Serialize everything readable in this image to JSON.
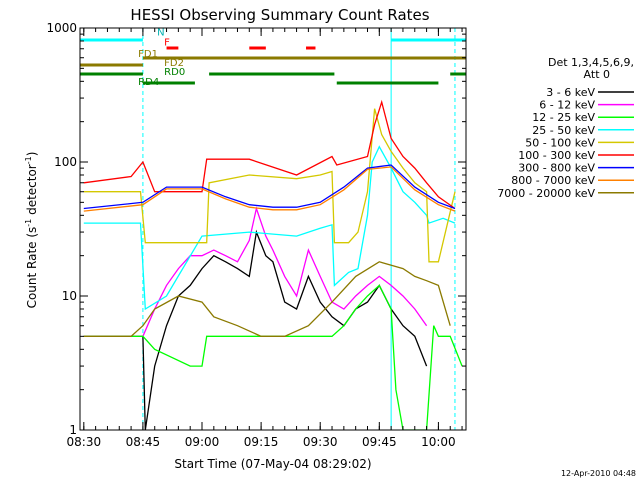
{
  "chart_data": {
    "type": "line",
    "title": "HESSI Observing Summary Count Rates",
    "xlabel": "Start Time (07-May-04 08:29:02)",
    "ylabel_main": "Count Rate (s",
    "ylabel_sup1": "-1",
    "ylabel_mid": " detector",
    "ylabel_sup2": "-1",
    "ylabel_end": ")",
    "yscale": "log",
    "xlim": [
      8.4839,
      10.1167
    ],
    "ylim": [
      1,
      1000
    ],
    "x_ticks": [
      {
        "v": 8.5,
        "label": "08:30"
      },
      {
        "v": 8.75,
        "label": "08:45"
      },
      {
        "v": 9.0,
        "label": "09:00"
      },
      {
        "v": 9.25,
        "label": "09:15"
      },
      {
        "v": 9.5,
        "label": "09:30"
      },
      {
        "v": 9.75,
        "label": "09:45"
      },
      {
        "v": 10.0,
        "label": "10:00"
      }
    ],
    "y_ticks": [
      {
        "v": 1,
        "label": "1"
      },
      {
        "v": 10,
        "label": "10"
      },
      {
        "v": 100,
        "label": "100"
      },
      {
        "v": 1000,
        "label": "1000"
      }
    ],
    "legend_header1": "Det 1,3,4,5,6,9,",
    "legend_header2": "Att 0",
    "legend_position": "right",
    "series": [
      {
        "name": "3 - 6 keV",
        "color": "#000000",
        "x": [
          8.5,
          8.75,
          8.76,
          8.8,
          8.85,
          8.9,
          8.95,
          9.0,
          9.05,
          9.1,
          9.15,
          9.2,
          9.23,
          9.27,
          9.3,
          9.35,
          9.4,
          9.45,
          9.5,
          9.55,
          9.6,
          9.65,
          9.7,
          9.75,
          9.8,
          9.85,
          9.9,
          9.95
        ],
        "y": [
          5,
          5,
          1,
          3,
          6,
          10,
          12,
          16,
          20,
          18,
          16,
          14,
          30,
          20,
          18,
          9,
          8,
          14,
          9,
          7,
          6,
          8,
          9,
          12,
          8,
          6,
          5,
          3
        ]
      },
      {
        "name": "6 - 12 keV",
        "color": "#ff00ff",
        "x": [
          8.5,
          8.75,
          8.8,
          8.85,
          8.9,
          8.95,
          9.0,
          9.05,
          9.1,
          9.15,
          9.2,
          9.23,
          9.27,
          9.3,
          9.35,
          9.4,
          9.45,
          9.5,
          9.55,
          9.6,
          9.65,
          9.7,
          9.75,
          9.8,
          9.85,
          9.9,
          9.95
        ],
        "y": [
          5,
          5,
          8,
          12,
          16,
          20,
          20,
          22,
          20,
          18,
          26,
          45,
          28,
          22,
          14,
          10,
          22,
          14,
          9,
          8,
          10,
          12,
          14,
          12,
          10,
          8,
          6
        ]
      },
      {
        "name": "12 - 25 keV",
        "color": "#00ff00",
        "x": [
          8.5,
          8.75,
          8.8,
          8.95,
          9.0,
          9.02,
          9.1,
          9.2,
          9.3,
          9.4,
          9.5,
          9.55,
          9.6,
          9.65,
          9.7,
          9.75,
          9.8,
          9.82,
          9.85,
          9.9,
          9.95,
          9.98,
          10.0,
          10.05,
          10.1
        ],
        "y": [
          5,
          5,
          4,
          3,
          3,
          5,
          5,
          5,
          5,
          5,
          5,
          5,
          6,
          8,
          10,
          12,
          8,
          2,
          1,
          1,
          1,
          6,
          5,
          5,
          3
        ]
      },
      {
        "name": "25 - 50 keV",
        "color": "#00ffff",
        "x": [
          8.5,
          8.74,
          8.76,
          8.85,
          9.0,
          9.2,
          9.4,
          9.5,
          9.55,
          9.56,
          9.62,
          9.66,
          9.7,
          9.72,
          9.75,
          9.8,
          9.85,
          9.9,
          9.95,
          9.96,
          10.02,
          10.07
        ],
        "y": [
          35,
          35,
          8,
          10,
          28,
          30,
          28,
          32,
          34,
          12,
          15,
          16,
          40,
          100,
          130,
          90,
          60,
          50,
          40,
          35,
          38,
          35
        ]
      },
      {
        "name": "50 - 100 keV",
        "color": "#d4c800",
        "x": [
          8.5,
          8.74,
          8.76,
          8.85,
          9.02,
          9.03,
          9.2,
          9.4,
          9.5,
          9.55,
          9.56,
          9.62,
          9.66,
          9.7,
          9.73,
          9.76,
          9.8,
          9.85,
          9.9,
          9.95,
          9.96,
          10.0,
          10.07
        ],
        "y": [
          60,
          60,
          25,
          25,
          25,
          70,
          80,
          75,
          80,
          85,
          25,
          25,
          30,
          60,
          250,
          160,
          120,
          90,
          70,
          60,
          18,
          18,
          60
        ]
      },
      {
        "name": "100 - 300 keV",
        "color": "#ff0000",
        "x": [
          8.5,
          8.7,
          8.75,
          8.8,
          9.0,
          9.02,
          9.2,
          9.4,
          9.55,
          9.57,
          9.7,
          9.73,
          9.76,
          9.8,
          9.85,
          9.9,
          9.95,
          10.0,
          10.07
        ],
        "y": [
          70,
          78,
          100,
          60,
          60,
          105,
          105,
          80,
          110,
          95,
          110,
          190,
          280,
          150,
          110,
          90,
          70,
          55,
          45
        ]
      },
      {
        "name": "300 - 800 keV",
        "color": "#0000ff",
        "x": [
          8.5,
          8.75,
          8.85,
          9.0,
          9.1,
          9.2,
          9.3,
          9.4,
          9.5,
          9.6,
          9.7,
          9.8,
          9.9,
          10.0,
          10.07
        ],
        "y": [
          45,
          50,
          65,
          65,
          55,
          48,
          46,
          46,
          50,
          65,
          90,
          95,
          65,
          50,
          45
        ]
      },
      {
        "name": "800 - 7000 keV",
        "color": "#ff8000",
        "x": [
          8.5,
          8.75,
          8.85,
          9.0,
          9.1,
          9.2,
          9.3,
          9.4,
          9.5,
          9.6,
          9.7,
          9.8,
          9.9,
          10.0,
          10.07
        ],
        "y": [
          43,
          48,
          63,
          63,
          53,
          46,
          44,
          44,
          48,
          62,
          88,
          92,
          62,
          48,
          43
        ]
      },
      {
        "name": "7000 - 20000 keV",
        "color": "#8b7a00",
        "x": [
          8.5,
          8.7,
          8.75,
          8.8,
          8.9,
          9.0,
          9.05,
          9.15,
          9.25,
          9.35,
          9.45,
          9.55,
          9.65,
          9.75,
          9.85,
          9.9,
          9.95,
          10.0,
          10.05
        ],
        "y": [
          5,
          5,
          6,
          8,
          10,
          9,
          7,
          6,
          5,
          5,
          6,
          9,
          14,
          18,
          16,
          14,
          13,
          12,
          6
        ]
      }
    ],
    "annotations": [
      {
        "text": "N",
        "color": "#00b0b0",
        "x": 8.81,
        "y": 880
      },
      {
        "text": "F",
        "color": "#ff0000",
        "x": 8.84,
        "y": 740
      },
      {
        "text": "FD1",
        "color": "#8b7a00",
        "x": 8.73,
        "y": 610
      },
      {
        "text": "FD2",
        "color": "#8b7a00",
        "x": 8.84,
        "y": 520
      },
      {
        "text": "RD0",
        "color": "#008000",
        "x": 8.84,
        "y": 445
      },
      {
        "text": "RD4",
        "color": "#008000",
        "x": 8.73,
        "y": 375
      }
    ],
    "state_bars": [
      {
        "label": "N",
        "color": "#00ffff",
        "segments": [
          [
            8.4839,
            8.75
          ],
          [
            9.8,
            10.1167
          ]
        ]
      },
      {
        "label": "F",
        "color": "#ff0000",
        "segments": [
          [
            8.85,
            8.9
          ],
          [
            9.2,
            9.27
          ],
          [
            9.44,
            9.48
          ]
        ]
      },
      {
        "label": "FD1",
        "color": "#8b7a00",
        "segments": [
          [
            8.75,
            10.1167
          ]
        ]
      },
      {
        "label": "FD2",
        "color": "#8b7a00",
        "segments": [
          [
            8.4839,
            8.75
          ]
        ]
      },
      {
        "label": "RD0",
        "color": "#008000",
        "segments": [
          [
            8.4839,
            8.75
          ],
          [
            9.03,
            9.56
          ],
          [
            10.05,
            10.1167
          ]
        ]
      },
      {
        "label": "RD4",
        "color": "#008000",
        "segments": [
          [
            8.75,
            8.97
          ],
          [
            9.57,
            10.0
          ]
        ]
      }
    ],
    "vlines": [
      {
        "x": 8.75,
        "color": "#00ffff",
        "style": "dashed"
      },
      {
        "x": 9.8,
        "color": "#00ffff",
        "style": "solid"
      },
      {
        "x": 10.07,
        "color": "#00ffff",
        "style": "dashed"
      }
    ]
  },
  "footer": {
    "timestamp": "12-Apr-2010 04:48"
  }
}
